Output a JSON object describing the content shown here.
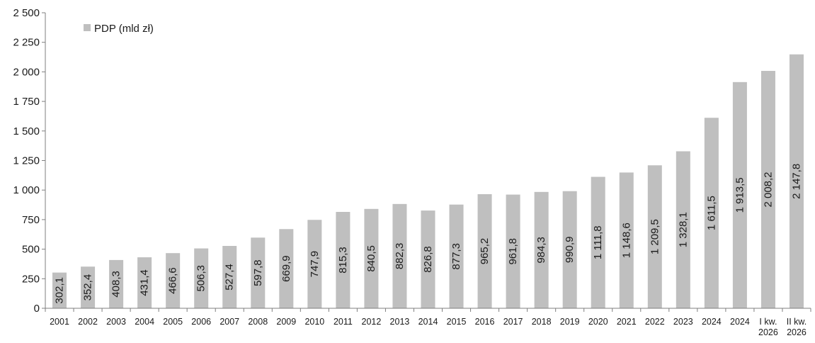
{
  "chart_data": {
    "type": "bar",
    "categories": [
      "2001",
      "2002",
      "2003",
      "2004",
      "2005",
      "2006",
      "2007",
      "2008",
      "2009",
      "2010",
      "2011",
      "2012",
      "2013",
      "2014",
      "2015",
      "2016",
      "2017",
      "2018",
      "2019",
      "2020",
      "2021",
      "2022",
      "2023",
      "2024",
      "2024",
      "I kw.\n2026",
      "II kw.\n2026"
    ],
    "series": [
      {
        "name": "PDP (mld zł)",
        "values": [
          302.1,
          352.4,
          408.3,
          431.4,
          466.6,
          506.3,
          527.4,
          597.8,
          669.9,
          747.9,
          815.3,
          840.5,
          882.3,
          826.8,
          877.3,
          965.2,
          961.8,
          984.3,
          990.9,
          1111.8,
          1148.6,
          1209.5,
          1328.1,
          1611.5,
          1913.5,
          2008.2,
          2147.8
        ],
        "data_labels": [
          "302,1",
          "352,4",
          "408,3",
          "431,4",
          "466,6",
          "506,3",
          "527,4",
          "597,8",
          "669,9",
          "747,9",
          "815,3",
          "840,5",
          "882,3",
          "826,8",
          "877,3",
          "965,2",
          "961,8",
          "984,3",
          "990,9",
          "1 111,8",
          "1 148,6",
          "1 209,5",
          "1 328,1",
          "1 611,5",
          "1 913,5",
          "2 008,2",
          "2 147,8"
        ],
        "color": "#bfbfbf"
      }
    ],
    "ylim": [
      0,
      2500
    ],
    "yticks": [
      0,
      250,
      500,
      750,
      1000,
      1250,
      1500,
      1750,
      2000,
      2250,
      2500
    ],
    "ytick_labels": [
      "0",
      "250",
      "500",
      "750",
      "1 000",
      "1 250",
      "1 500",
      "1 750",
      "2 000",
      "2 250",
      "2 500"
    ],
    "title": "",
    "xlabel": "",
    "ylabel": "",
    "legend_position": "top-left",
    "grid": false
  }
}
